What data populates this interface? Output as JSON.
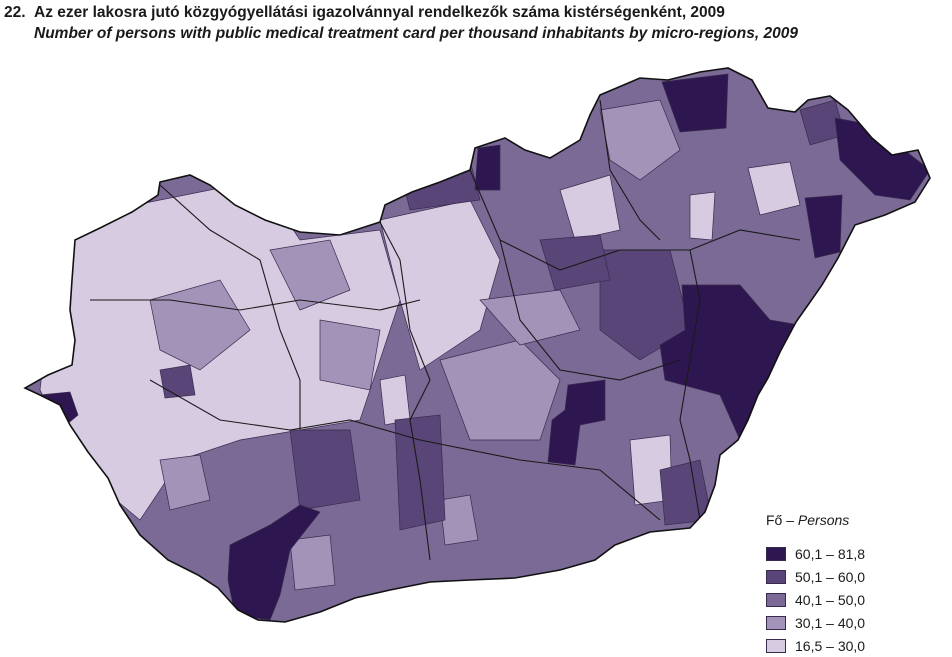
{
  "header": {
    "number": "22.",
    "title_hu": "Az ezer lakosra jutó közgyógyellátási igazolvánnyal rendelkezők száma kistérségenként, 2009",
    "title_en": "Number of persons with public medical treatment card per thousand inhabitants by micro-regions, 2009"
  },
  "legend": {
    "title_hu": "Fő – ",
    "title_en": "Persons",
    "classes": [
      {
        "label": "60,1 – 81,8",
        "color": "#2e1650"
      },
      {
        "label": "50,1 – 60,0",
        "color": "#594577"
      },
      {
        "label": "40,1 – 50,0",
        "color": "#7b6996"
      },
      {
        "label": "30,1 – 40,0",
        "color": "#a393b9"
      },
      {
        "label": "16,5 – 30,0",
        "color": "#d7cbe1"
      }
    ]
  },
  "map": {
    "country": "Hungary",
    "boundary_color": "#1a1a1a"
  }
}
